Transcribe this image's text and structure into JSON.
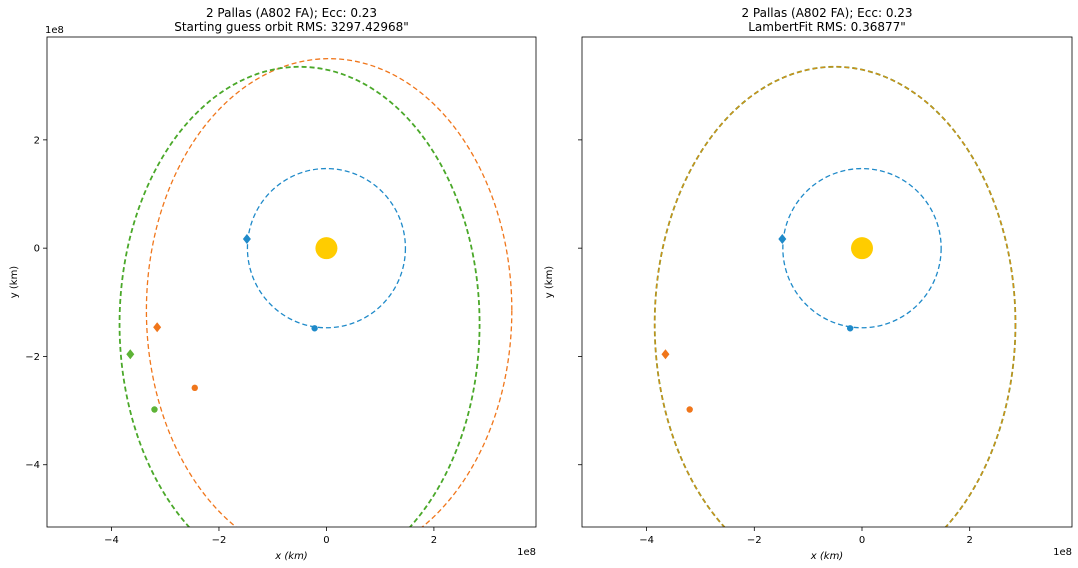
{
  "chart_data": [
    {
      "type": "scatter",
      "title": "2 Pallas (A802 FA); Ecc: 0.23",
      "subtitle": "Starting guess orbit RMS: 3297.42968\"",
      "xlabel": "x (km)",
      "ylabel": "y (km)",
      "offset_label": "1e8",
      "xlim": [
        -5.2,
        3.9
      ],
      "ylim": [
        -5.15,
        3.9
      ],
      "xticks": [
        -4,
        -2,
        0,
        2
      ],
      "yticks": [
        -4,
        -2,
        0,
        2
      ],
      "xtick_labels": [
        "−4",
        "−2",
        "0",
        "2"
      ],
      "ytick_labels": [
        "−4",
        "−2",
        "0",
        "2"
      ],
      "sun": {
        "x": 0,
        "y": 0,
        "color": "#ffcc00"
      },
      "orbits": [
        {
          "color": "#1f8ac9",
          "cx": 0.0,
          "cy": 0.0,
          "rx": 1.47,
          "ry": 1.47,
          "width": 1.3
        },
        {
          "color": "#f0761b",
          "cx": 0.05,
          "cy": -1.15,
          "rx": 3.4,
          "ry": 4.65,
          "width": 1.3
        },
        {
          "color": "#4aa829",
          "cx": -0.5,
          "cy": -1.4,
          "rx": 3.35,
          "ry": 4.75,
          "width": 1.8
        }
      ],
      "points": [
        {
          "color": "#1f8ac9",
          "x": -1.48,
          "y": 0.17,
          "shape": "diamond"
        },
        {
          "color": "#1f8ac9",
          "x": -0.22,
          "y": -1.48,
          "shape": "dot"
        },
        {
          "color": "#f0761b",
          "x": -3.15,
          "y": -1.46,
          "shape": "diamond"
        },
        {
          "color": "#f0761b",
          "x": -2.45,
          "y": -2.58,
          "shape": "dot"
        },
        {
          "color": "#5db336",
          "x": -3.65,
          "y": -1.96,
          "shape": "diamond"
        },
        {
          "color": "#5db336",
          "x": -3.2,
          "y": -2.98,
          "shape": "dot"
        }
      ]
    },
    {
      "type": "scatter",
      "title": "2 Pallas (A802 FA); Ecc: 0.23",
      "subtitle": "LambertFit RMS: 0.36877\"",
      "xlabel": "x (km)",
      "ylabel": "y (km)",
      "offset_label": "1e8",
      "xlim": [
        -5.2,
        3.9
      ],
      "ylim": [
        -5.15,
        3.9
      ],
      "xticks": [
        -4,
        -2,
        0,
        2
      ],
      "yticks": [
        -4,
        -2,
        0,
        2
      ],
      "xtick_labels": [
        "−4",
        "−2",
        "0",
        "2"
      ],
      "ytick_labels": [
        "",
        "",
        "",
        ""
      ],
      "sun": {
        "x": 0,
        "y": 0,
        "color": "#ffcc00"
      },
      "orbits": [
        {
          "color": "#1f8ac9",
          "cx": 0.0,
          "cy": 0.0,
          "rx": 1.47,
          "ry": 1.47,
          "width": 1.3
        },
        {
          "color": "#6b9c26",
          "cx": -0.5,
          "cy": -1.4,
          "rx": 3.35,
          "ry": 4.75,
          "width": 1.8
        },
        {
          "color": "#e38a18",
          "cx": -0.5,
          "cy": -1.4,
          "rx": 3.35,
          "ry": 4.75,
          "width": 1.0
        }
      ],
      "points": [
        {
          "color": "#1f8ac9",
          "x": -1.48,
          "y": 0.17,
          "shape": "diamond"
        },
        {
          "color": "#1f8ac9",
          "x": -0.22,
          "y": -1.48,
          "shape": "dot"
        },
        {
          "color": "#f0761b",
          "x": -3.65,
          "y": -1.96,
          "shape": "diamond"
        },
        {
          "color": "#f0761b",
          "x": -3.2,
          "y": -2.98,
          "shape": "dot"
        }
      ]
    }
  ]
}
